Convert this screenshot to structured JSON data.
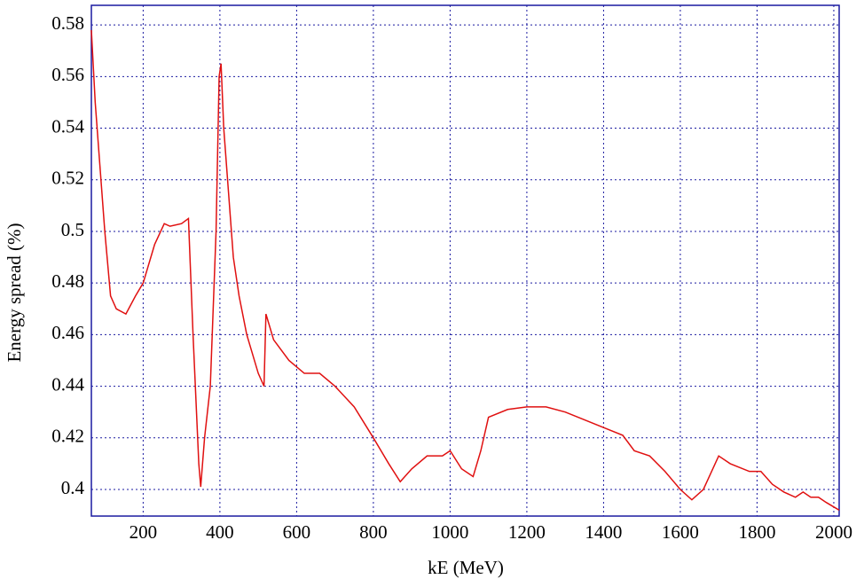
{
  "chart_data": {
    "type": "line",
    "x_label": "kE (MeV)",
    "y_label": "Energy spread (%)",
    "x": [
      65,
      75,
      85,
      100,
      115,
      130,
      155,
      180,
      200,
      230,
      255,
      270,
      300,
      318,
      330,
      345,
      350,
      360,
      375,
      390,
      398,
      403,
      410,
      420,
      435,
      450,
      470,
      500,
      515,
      520,
      540,
      580,
      620,
      660,
      700,
      750,
      800,
      840,
      870,
      900,
      940,
      980,
      1000,
      1030,
      1060,
      1080,
      1100,
      1150,
      1200,
      1250,
      1300,
      1350,
      1400,
      1450,
      1480,
      1520,
      1560,
      1600,
      1630,
      1660,
      1700,
      1730,
      1780,
      1810,
      1840,
      1870,
      1900,
      1920,
      1940,
      1960,
      1980,
      2014
    ],
    "series": [
      {
        "color": "#e01010",
        "values": [
          0.578,
          0.55,
          0.53,
          0.5,
          0.475,
          0.47,
          0.468,
          0.475,
          0.48,
          0.495,
          0.503,
          0.502,
          0.503,
          0.505,
          0.46,
          0.41,
          0.401,
          0.42,
          0.44,
          0.5,
          0.56,
          0.565,
          0.54,
          0.52,
          0.49,
          0.475,
          0.46,
          0.445,
          0.44,
          0.468,
          0.458,
          0.45,
          0.445,
          0.445,
          0.44,
          0.432,
          0.42,
          0.41,
          0.403,
          0.408,
          0.413,
          0.413,
          0.415,
          0.408,
          0.405,
          0.415,
          0.428,
          0.431,
          0.432,
          0.432,
          0.43,
          0.427,
          0.424,
          0.421,
          0.415,
          0.413,
          0.407,
          0.4,
          0.396,
          0.4,
          0.413,
          0.41,
          0.407,
          0.407,
          0.402,
          0.399,
          0.397,
          0.399,
          0.397,
          0.397,
          0.395,
          0.392
        ]
      }
    ],
    "xlim": [
      65,
      2014
    ],
    "ylim": [
      0.3897,
      0.5876
    ],
    "xticks": [
      200,
      400,
      600,
      800,
      1000,
      1200,
      1400,
      1600,
      1800,
      2000
    ],
    "yticks": [
      0.4,
      0.42,
      0.44,
      0.46,
      0.48,
      0.5,
      0.52,
      0.54,
      0.56,
      0.58
    ],
    "grid": true,
    "frame_color": "#1a1aa0"
  }
}
